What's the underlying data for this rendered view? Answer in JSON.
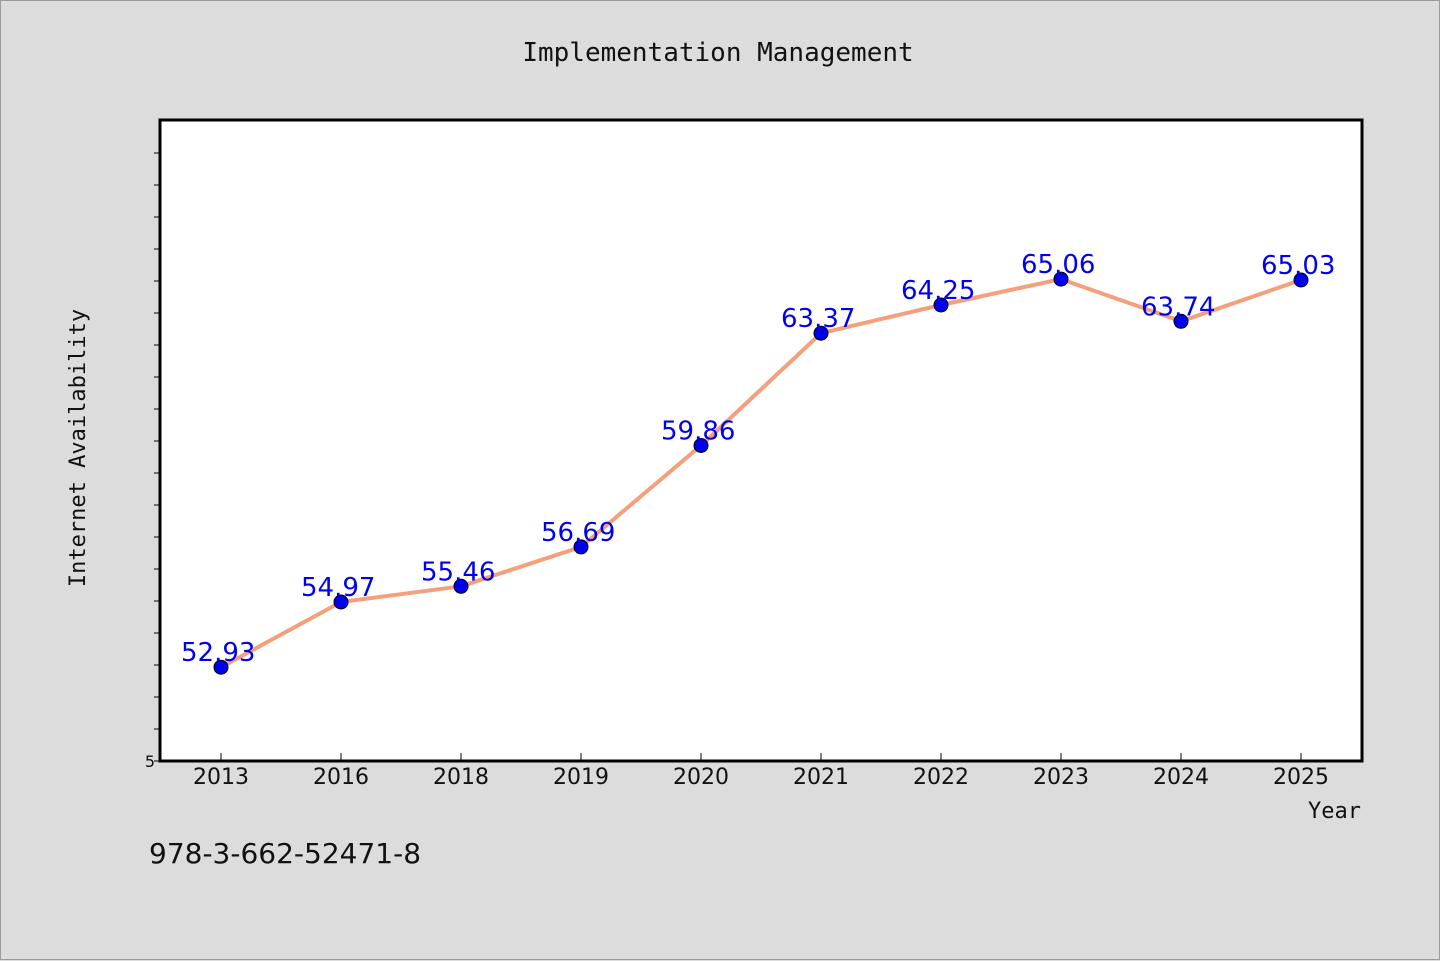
{
  "footnote": "978-3-662-52471-8",
  "colors": {
    "line": "#f4a07c",
    "marker": "#0000ee",
    "label": "#0000ee",
    "plot_bg": "#ffffff",
    "page_bg": "#dcdcdc"
  },
  "chart_data": {
    "type": "line",
    "title": "Implementation Management",
    "xlabel": "Year",
    "ylabel": "Internet Availability",
    "categories": [
      "2013",
      "2016",
      "2018",
      "2019",
      "2020",
      "2021",
      "2022",
      "2023",
      "2024",
      "2025"
    ],
    "series": [
      {
        "values": [
          52.93,
          54.97,
          55.46,
          56.69,
          59.86,
          63.37,
          64.25,
          65.06,
          63.74,
          65.03
        ]
      }
    ],
    "value_labels": [
      "52.93",
      "54.97",
      "55.46",
      "56.69",
      "59.86",
      "63.37",
      "64.25",
      "65.06",
      "63.74",
      "65.03"
    ],
    "y_tick_labels": [
      "5"
    ],
    "ylim": [
      50,
      70
    ],
    "grid": false,
    "legend": "none"
  }
}
